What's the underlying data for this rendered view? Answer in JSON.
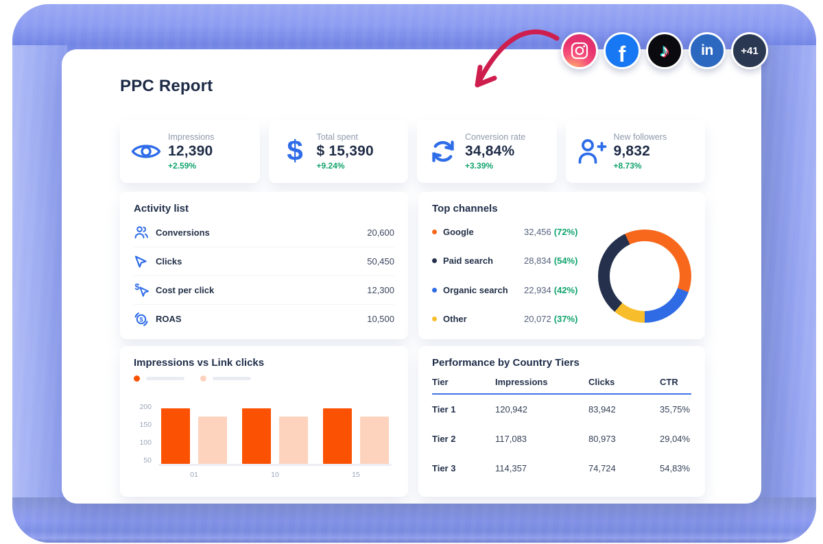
{
  "page": {
    "title": "PPC Report"
  },
  "social": {
    "icons": [
      {
        "name": "instagram-icon"
      },
      {
        "name": "facebook-icon"
      },
      {
        "name": "tiktok-icon"
      },
      {
        "name": "linkedin-icon"
      }
    ],
    "more_label": "+41"
  },
  "stats": [
    {
      "icon": "eye-icon",
      "label": "Impressions",
      "value": "12,390",
      "delta": "+2.59%"
    },
    {
      "icon": "dollar-icon",
      "label": "Total spent",
      "value": "$ 15,390",
      "delta": "+9.24%"
    },
    {
      "icon": "refresh-icon",
      "label": "Conversion rate",
      "value": "34,84%",
      "delta": "+3.39%"
    },
    {
      "icon": "user-plus-icon",
      "label": "New followers",
      "value": "9,832",
      "delta": "+8.73%"
    }
  ],
  "activity": {
    "title": "Activity list",
    "rows": [
      {
        "icon": "people-icon",
        "label": "Conversions",
        "value": "20,600"
      },
      {
        "icon": "cursor-icon",
        "label": "Clicks",
        "value": "50,450"
      },
      {
        "icon": "cost-click-icon",
        "label": "Cost per click",
        "value": "12,300"
      },
      {
        "icon": "roas-icon",
        "label": "ROAS",
        "value": "10,500"
      }
    ]
  },
  "channels": {
    "title": "Top channels",
    "items": [
      {
        "label": "Google",
        "value": "32,456",
        "pct": "(72%)",
        "color": "#f8681c"
      },
      {
        "label": "Paid search",
        "value": "28,834",
        "pct": "(54%)",
        "color": "#25314c"
      },
      {
        "label": "Organic search",
        "value": "22,934",
        "pct": "(42%)",
        "color": "#2e6be4"
      },
      {
        "label": "Other",
        "value": "20,072",
        "pct": "(37%)",
        "color": "#f8bd2b"
      }
    ]
  },
  "chart_data": [
    {
      "type": "bar",
      "title": "Impressions vs Link clicks",
      "categories": [
        "01",
        "10",
        "15"
      ],
      "series": [
        {
          "name": "Impressions",
          "color": "#fb5103",
          "values": [
            195,
            195,
            195
          ]
        },
        {
          "name": "Link clicks",
          "color": "#fdd3bd",
          "values": [
            172,
            172,
            172
          ]
        }
      ],
      "yticks": [
        200,
        150,
        100,
        50
      ],
      "ylim": [
        40,
        215
      ],
      "grid": "off",
      "legend": "dots with placeholder pills, no text labels"
    },
    {
      "type": "donut",
      "title": "Top channels",
      "start_deg": -25,
      "segments": [
        {
          "label": "Google",
          "value": 32456,
          "pct": 72,
          "color": "#f8681c",
          "sweep_deg": 135
        },
        {
          "label": "Organic search",
          "value": 22934,
          "pct": 42,
          "color": "#2e6be4",
          "sweep_deg": 70
        },
        {
          "label": "Other",
          "value": 20072,
          "pct": 37,
          "color": "#f8bd2b",
          "sweep_deg": 40
        },
        {
          "label": "Paid search",
          "value": 28834,
          "pct": 54,
          "color": "#25314c",
          "sweep_deg": 115
        }
      ]
    }
  ],
  "table": {
    "title": "Performance by Country Tiers",
    "columns": [
      "Tier",
      "Impressions",
      "Clicks",
      "CTR"
    ],
    "rows": [
      [
        "Tier 1",
        "120,942",
        "83,942",
        "35,75%"
      ],
      [
        "Tier 2",
        "117,083",
        "80,973",
        "29,04%"
      ],
      [
        "Tier 3",
        "114,357",
        "74,724",
        "54,83%"
      ]
    ]
  },
  "colors": {
    "accent_blue": "#2e6ce8",
    "positive_green": "#0fa36c",
    "bar_orange": "#fb5103",
    "bar_orange_light": "#fdd3bd",
    "navy_text": "#1e2b46",
    "table_rule_blue": "#3d74e8",
    "arrow_red": "#ce1e4d",
    "background_periwinkle": "#93a2f0"
  }
}
